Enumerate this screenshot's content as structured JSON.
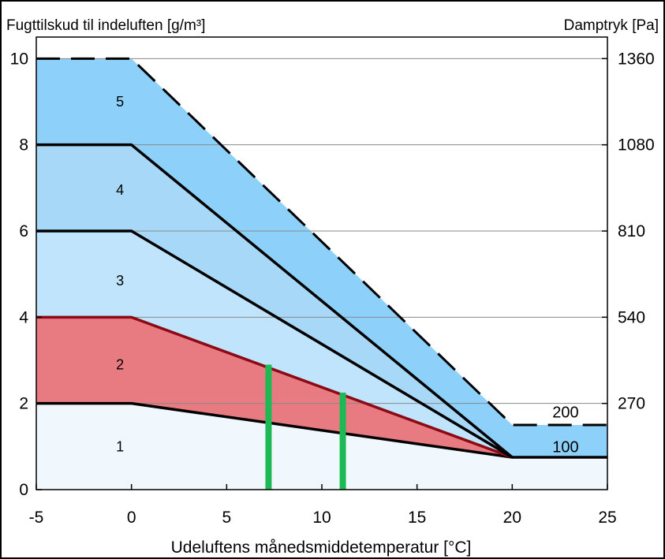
{
  "chart_data": {
    "type": "area",
    "ylabel_left": "Fugttilskud til indeluften [g/m³]",
    "ylabel_right": "Damptryk [Pa]",
    "xlabel": "Udeluftens månedsmiddetemperatur [°C]",
    "xlim": [
      -5,
      25
    ],
    "ylim": [
      0,
      10.5
    ],
    "x_ticks": [
      {
        "value": -5,
        "label": "-5"
      },
      {
        "value": 0,
        "label": "0"
      },
      {
        "value": 5,
        "label": "5"
      },
      {
        "value": 10,
        "label": "10"
      },
      {
        "value": 15,
        "label": "15"
      },
      {
        "value": 20,
        "label": "20"
      },
      {
        "value": 25,
        "label": "25"
      }
    ],
    "y_ticks_left": [
      {
        "value": 0,
        "label": "0"
      },
      {
        "value": 2,
        "label": "2"
      },
      {
        "value": 4,
        "label": "4"
      },
      {
        "value": 6,
        "label": "6"
      },
      {
        "value": 8,
        "label": "8"
      },
      {
        "value": 10,
        "label": "10"
      }
    ],
    "y_ticks_right": [
      {
        "value": 2,
        "label": "270"
      },
      {
        "value": 4,
        "label": "540"
      },
      {
        "value": 6,
        "label": "810"
      },
      {
        "value": 8,
        "label": "1080"
      },
      {
        "value": 10,
        "label": "1360"
      }
    ],
    "grid": true,
    "series": [
      {
        "x": [
          -5,
          0,
          20,
          25
        ],
        "y": [
          2,
          2,
          0.75,
          0.75
        ],
        "style": "solid",
        "color": "#000000"
      },
      {
        "x": [
          -5,
          0,
          20
        ],
        "y": [
          4,
          4,
          0.75
        ],
        "style": "solid",
        "color": "#8b0a14"
      },
      {
        "x": [
          -5,
          0,
          20
        ],
        "y": [
          6,
          6,
          0.75
        ],
        "style": "solid",
        "color": "#000000"
      },
      {
        "x": [
          -5,
          0,
          20
        ],
        "y": [
          8,
          8,
          0.75
        ],
        "style": "solid",
        "color": "#000000"
      },
      {
        "x": [
          -5,
          0,
          20,
          25
        ],
        "y": [
          10,
          10,
          1.5,
          1.5
        ],
        "style": "dashed",
        "color": "#000000"
      }
    ],
    "zones": [
      {
        "label": "1",
        "x": -0.6,
        "y": 1.0,
        "color": "#f0f7fd",
        "label_color": "#000000"
      },
      {
        "label": "2",
        "x": -0.6,
        "y": 2.9,
        "color": "#e87b81",
        "label_color": "#8b0a14"
      },
      {
        "label": "3",
        "x": -0.6,
        "y": 4.85,
        "color": "#bfe4fb",
        "label_color": "#000000"
      },
      {
        "label": "4",
        "x": -0.6,
        "y": 6.95,
        "color": "#a8d8f8",
        "label_color": "#000000"
      },
      {
        "label": "5",
        "x": -0.6,
        "y": 9.0,
        "color": "#8dd1fa",
        "label_color": "#000000"
      }
    ],
    "annotations": [
      {
        "text": "200",
        "x": 22.8,
        "y": 1.8
      },
      {
        "text": "100",
        "x": 22.8,
        "y": 1.0
      }
    ],
    "markers": [
      {
        "x": 7.2,
        "y0": 0,
        "y1": 2.9,
        "color": "#1db954"
      },
      {
        "x": 11.1,
        "y0": 0,
        "y1": 2.25,
        "color": "#1db954"
      }
    ]
  }
}
